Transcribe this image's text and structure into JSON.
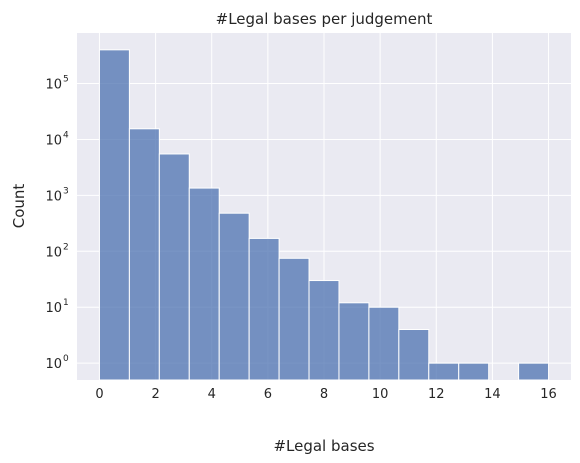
{
  "chart_data": {
    "type": "bar",
    "title": "#Legal bases per judgement",
    "xlabel": "#Legal bases",
    "ylabel": "Count",
    "yscale": "log",
    "bin_edges": [
      0,
      1.0667,
      2.1333,
      3.2,
      4.2667,
      5.3333,
      6.4,
      7.4667,
      8.5333,
      9.6,
      10.6667,
      11.7333,
      12.8,
      13.8667,
      14.9333,
      16
    ],
    "values": [
      400000,
      15500,
      5500,
      1350,
      480,
      170,
      75,
      30,
      12,
      10,
      4,
      1,
      1,
      0,
      1
    ],
    "xlim": [
      -0.8,
      16.8
    ],
    "ylim": [
      0.5,
      800000
    ],
    "x_ticks": [
      0,
      2,
      4,
      6,
      8,
      10,
      12,
      14,
      16
    ],
    "x_tick_labels": [
      "0",
      "2",
      "4",
      "6",
      "8",
      "10",
      "12",
      "14",
      "16"
    ],
    "y_ticks": [
      1,
      10,
      100,
      1000,
      10000,
      100000
    ],
    "y_tick_mantissa": "10",
    "y_tick_exponents": [
      "0",
      "1",
      "2",
      "3",
      "4",
      "5"
    ],
    "grid": true,
    "colors": {
      "bar_fill": "#4c72b0",
      "bar_edge": "#ffffff",
      "plot_background": "#eaeaf2",
      "grid": "#ffffff"
    }
  }
}
